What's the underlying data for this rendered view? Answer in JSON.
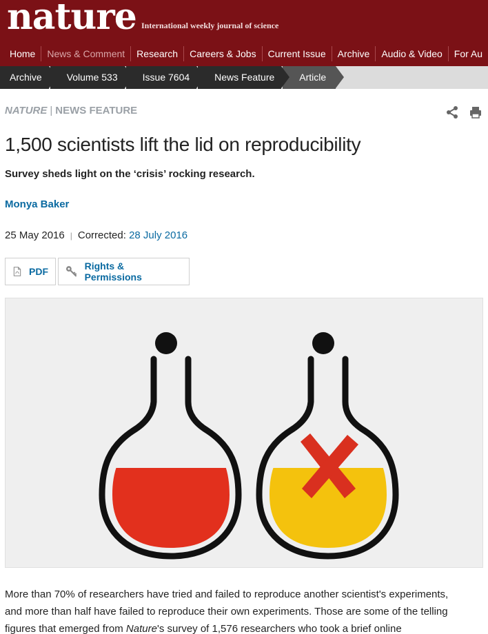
{
  "masthead": {
    "logo": "nature",
    "tagline": "International weekly journal of science"
  },
  "nav": {
    "items": [
      {
        "label": "Home"
      },
      {
        "label": "News & Comment"
      },
      {
        "label": "Research"
      },
      {
        "label": "Careers & Jobs"
      },
      {
        "label": "Current Issue"
      },
      {
        "label": "Archive"
      },
      {
        "label": "Audio & Video"
      },
      {
        "label": "For Au"
      }
    ]
  },
  "breadcrumb": {
    "items": [
      {
        "label": "Archive"
      },
      {
        "label": "Volume 533"
      },
      {
        "label": "Issue 7604"
      },
      {
        "label": "News Feature"
      },
      {
        "label": "Article"
      }
    ]
  },
  "article": {
    "journal": "NATURE",
    "section_sep": "|",
    "section": "NEWS FEATURE",
    "title": "1,500 scientists lift the lid on reproducibility",
    "standfirst": "Survey sheds light on the ‘crisis’ rocking research.",
    "author": "Monya Baker",
    "date": "25 May 2016",
    "date_sep": "|",
    "corrected_label": "Corrected:",
    "corrected_date": "28 July 2016",
    "pdf_label": "PDF",
    "rights_label": "Rights & Permissions",
    "body_1": "More than 70% of researchers have tried and failed to reproduce another scientist's experiments,",
    "body_2": "and more than half have failed to reproduce their own experiments. Those are some of the telling",
    "body_3_a": "figures that emerged from ",
    "body_3_em": "Nature",
    "body_3_b": "'s survey of 1,576 researchers who took a brief online"
  },
  "icons": {
    "share": "share-icon",
    "print": "print-icon",
    "pdf": "pdf-icon",
    "rights": "key-icon"
  },
  "colors": {
    "masthead": "#7b1116",
    "link": "#0a6aa1",
    "flask_red": "#e2301d",
    "flask_yellow": "#f4c20d"
  }
}
